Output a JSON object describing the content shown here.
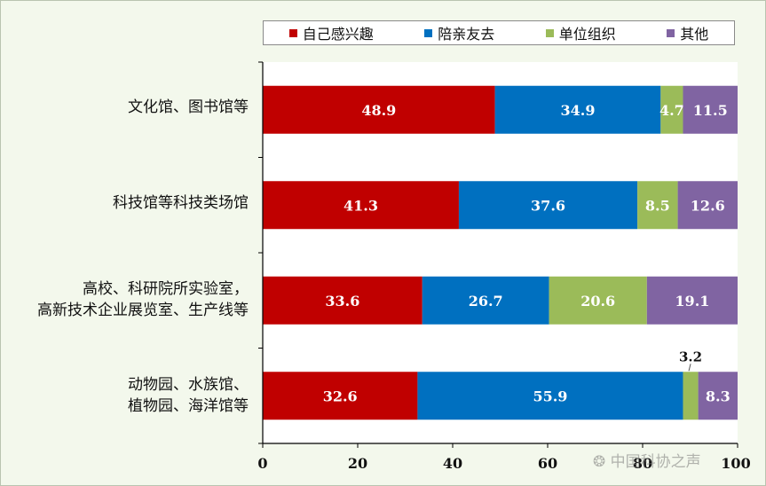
{
  "chart_data": {
    "type": "bar",
    "orientation": "horizontal",
    "stacked": true,
    "categories": [
      [
        "文化馆、图书馆等"
      ],
      [
        "科技馆等科技类场馆"
      ],
      [
        "高校、科研院所实验室，",
        "高新技术企业展览室、生产线等"
      ],
      [
        "动物园、水族馆、",
        "植物园、海洋馆等"
      ]
    ],
    "series": [
      {
        "name": "自己感兴趣",
        "color": "#c00000",
        "values": [
          48.9,
          41.3,
          33.6,
          32.6
        ]
      },
      {
        "name": "陪亲友去",
        "color": "#0070c0",
        "values": [
          34.9,
          37.6,
          26.7,
          55.9
        ]
      },
      {
        "name": "单位组织",
        "color": "#9bbb59",
        "values": [
          4.7,
          8.5,
          20.6,
          3.2
        ]
      },
      {
        "name": "其他",
        "color": "#8064a2",
        "values": [
          11.5,
          12.6,
          19.1,
          8.3
        ]
      }
    ],
    "xlim": [
      0,
      100
    ],
    "xticks": [
      "0",
      "20",
      "40",
      "60",
      "80",
      "100"
    ],
    "legend_position": "top",
    "grid": false
  },
  "watermark": "中国科协之声",
  "watermark_icon": "weibo-icon"
}
